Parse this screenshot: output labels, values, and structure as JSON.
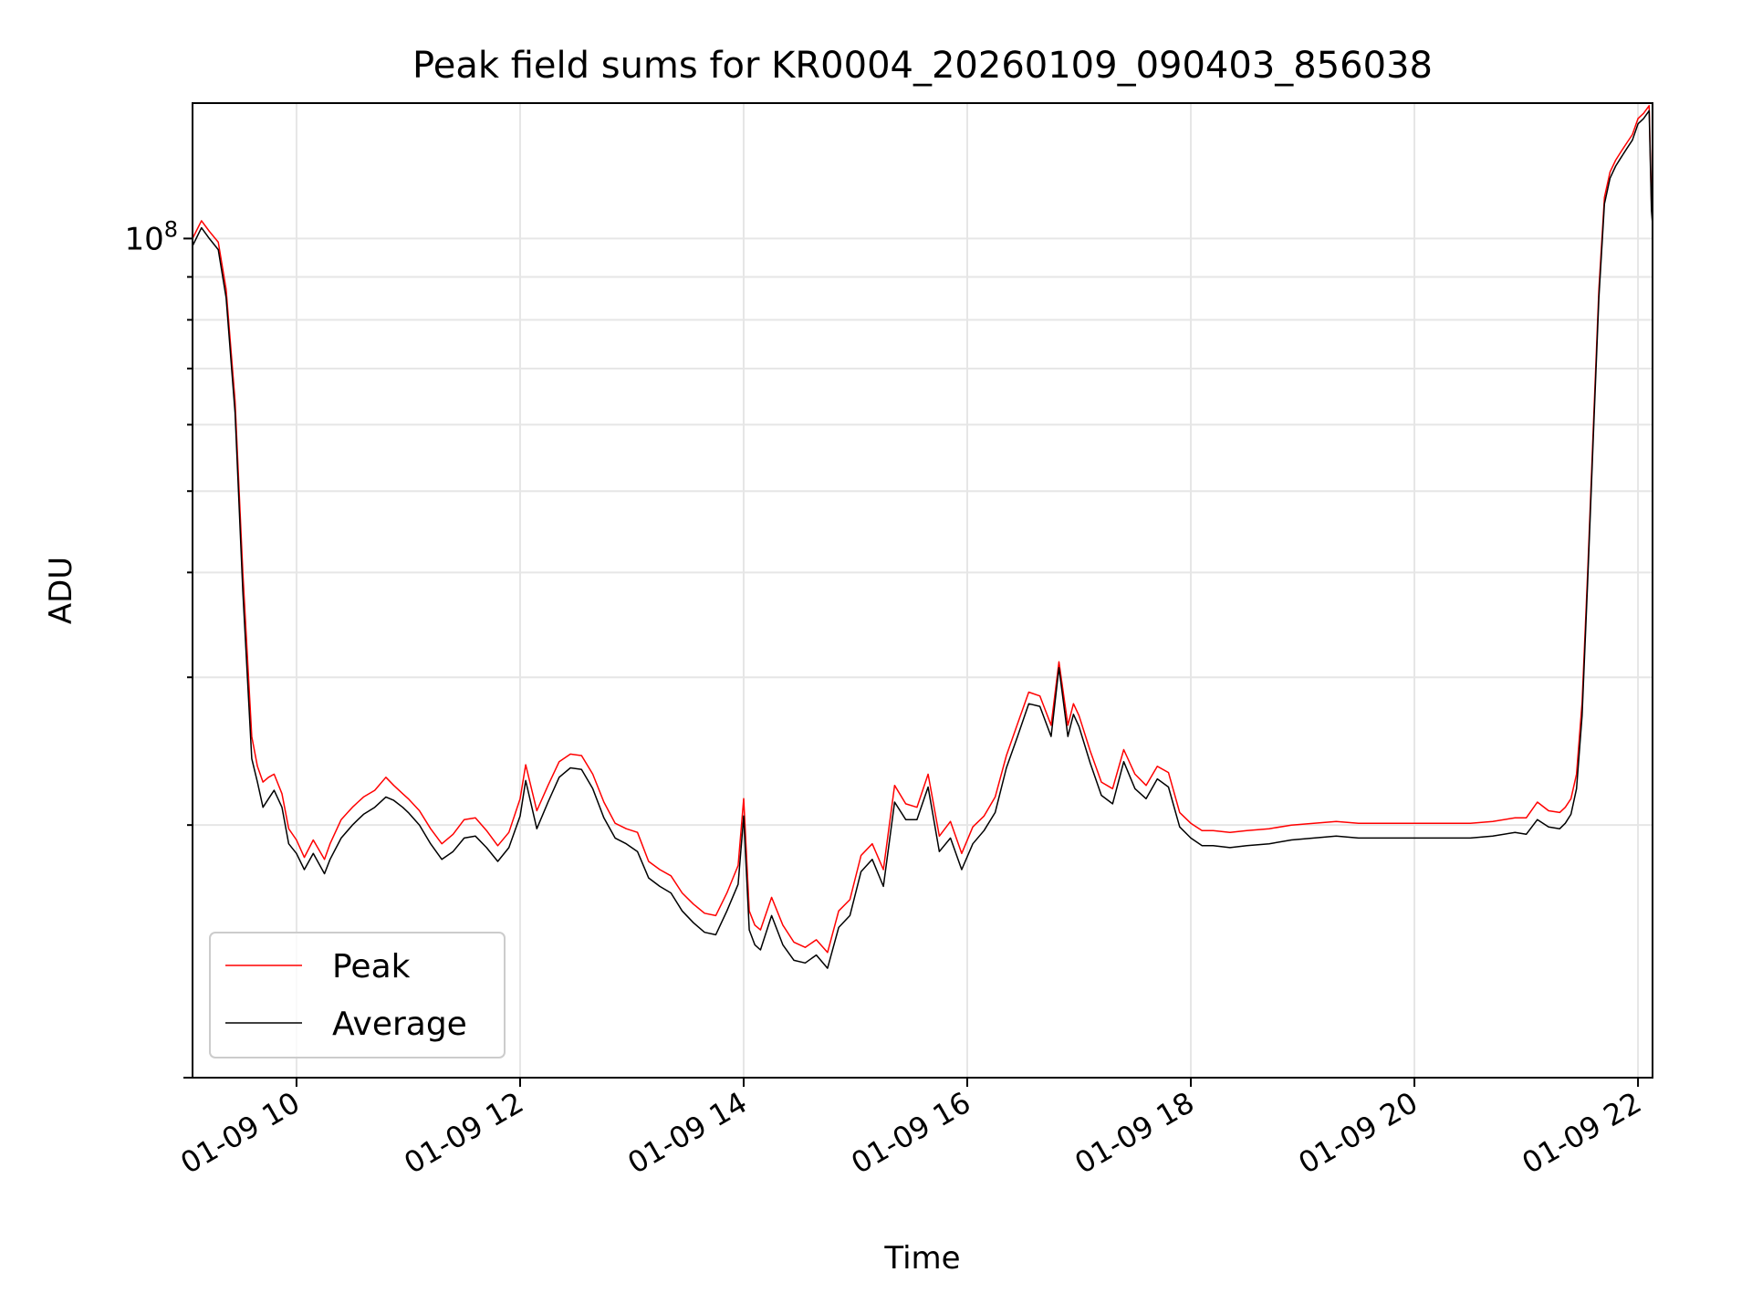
{
  "chart_data": {
    "type": "line",
    "title": "Peak field sums for KR0004_20260109_090403_856038",
    "xlabel": "Time",
    "ylabel": "ADU",
    "yscale": "log",
    "ylim": [
      10000000,
      145000000
    ],
    "xlim_hours": [
      9.07,
      22.13
    ],
    "grid": true,
    "legend_position": "lower-left",
    "x_ticks": [
      {
        "hour": 10,
        "label": "01-09 10"
      },
      {
        "hour": 12,
        "label": "01-09 12"
      },
      {
        "hour": 14,
        "label": "01-09 14"
      },
      {
        "hour": 16,
        "label": "01-09 16"
      },
      {
        "hour": 18,
        "label": "01-09 18"
      },
      {
        "hour": 20,
        "label": "01-09 20"
      },
      {
        "hour": 22,
        "label": "01-09 22"
      }
    ],
    "y_major_label": {
      "value": 100000000,
      "base": "10",
      "exponent": "8"
    },
    "series": [
      {
        "name": "Peak",
        "color": "#ff0000"
      },
      {
        "name": "Average",
        "color": "#000000"
      }
    ],
    "x_hours": [
      9.07,
      9.15,
      9.22,
      9.3,
      9.37,
      9.45,
      9.52,
      9.6,
      9.65,
      9.7,
      9.75,
      9.8,
      9.87,
      9.93,
      10.0,
      10.07,
      10.15,
      10.25,
      10.3,
      10.4,
      10.5,
      10.55,
      10.6,
      10.7,
      10.8,
      10.87,
      10.95,
      11.0,
      11.1,
      11.2,
      11.3,
      11.4,
      11.5,
      11.6,
      11.7,
      11.8,
      11.9,
      12.0,
      12.05,
      12.15,
      12.25,
      12.35,
      12.45,
      12.55,
      12.65,
      12.75,
      12.85,
      12.95,
      13.05,
      13.15,
      13.25,
      13.35,
      13.45,
      13.55,
      13.65,
      13.75,
      13.85,
      13.95,
      14.0,
      14.05,
      14.1,
      14.15,
      14.25,
      14.35,
      14.45,
      14.55,
      14.65,
      14.75,
      14.85,
      14.95,
      15.05,
      15.15,
      15.25,
      15.35,
      15.45,
      15.55,
      15.65,
      15.75,
      15.85,
      15.95,
      16.05,
      16.15,
      16.25,
      16.35,
      16.45,
      16.55,
      16.65,
      16.75,
      16.82,
      16.9,
      16.95,
      17.0,
      17.1,
      17.2,
      17.3,
      17.4,
      17.5,
      17.6,
      17.7,
      17.8,
      17.9,
      18.0,
      18.1,
      18.2,
      18.35,
      18.5,
      18.7,
      18.9,
      19.1,
      19.3,
      19.5,
      19.7,
      19.9,
      20.1,
      20.3,
      20.5,
      20.7,
      20.9,
      21.0,
      21.1,
      21.2,
      21.3,
      21.35,
      21.4,
      21.45,
      21.5,
      21.55,
      21.6,
      21.65,
      21.7,
      21.75,
      21.8,
      21.85,
      21.9,
      21.95,
      22.0,
      22.05,
      22.1,
      22.12,
      22.13
    ],
    "average_values": [
      98000000,
      103000000,
      100000000,
      97000000,
      85000000,
      62000000,
      38000000,
      24000000,
      22500000,
      21000000,
      21500000,
      22000000,
      21000000,
      19000000,
      18500000,
      17700000,
      18500000,
      17500000,
      18200000,
      19300000,
      20000000,
      20300000,
      20600000,
      21000000,
      21600000,
      21400000,
      21000000,
      20700000,
      20000000,
      19000000,
      18200000,
      18600000,
      19300000,
      19400000,
      18800000,
      18100000,
      18800000,
      20500000,
      22600000,
      19800000,
      21300000,
      22800000,
      23400000,
      23300000,
      22100000,
      20400000,
      19300000,
      19000000,
      18600000,
      17300000,
      16900000,
      16600000,
      15800000,
      15300000,
      14900000,
      14800000,
      15800000,
      17000000,
      20500000,
      15000000,
      14400000,
      14200000,
      15600000,
      14400000,
      13800000,
      13700000,
      14000000,
      13500000,
      15100000,
      15600000,
      17600000,
      18200000,
      16900000,
      21300000,
      20300000,
      20300000,
      22200000,
      18600000,
      19300000,
      17700000,
      19000000,
      19700000,
      20700000,
      23400000,
      25500000,
      27900000,
      27700000,
      25500000,
      30800000,
      25500000,
      27100000,
      26200000,
      23700000,
      21700000,
      21200000,
      23800000,
      22100000,
      21500000,
      22700000,
      22200000,
      19900000,
      19300000,
      18900000,
      18900000,
      18800000,
      18900000,
      19000000,
      19200000,
      19300000,
      19400000,
      19300000,
      19300000,
      19300000,
      19300000,
      19300000,
      19300000,
      19400000,
      19600000,
      19500000,
      20300000,
      19900000,
      19800000,
      20100000,
      20600000,
      22100000,
      27000000,
      39000000,
      58000000,
      85000000,
      110000000,
      118000000,
      122000000,
      125000000,
      128000000,
      131000000,
      137000000,
      139000000,
      142000000,
      108000000,
      104000000
    ],
    "peak_values": [
      100000000,
      105000000,
      102000000,
      99000000,
      87000000,
      64000000,
      40000000,
      25500000,
      23500000,
      22500000,
      22800000,
      23000000,
      21800000,
      19800000,
      19200000,
      18300000,
      19200000,
      18200000,
      19000000,
      20300000,
      21000000,
      21300000,
      21600000,
      22000000,
      22800000,
      22300000,
      21800000,
      21500000,
      20800000,
      19800000,
      19000000,
      19500000,
      20300000,
      20400000,
      19700000,
      18900000,
      19600000,
      21500000,
      23600000,
      20800000,
      22300000,
      23800000,
      24300000,
      24200000,
      23000000,
      21300000,
      20100000,
      19800000,
      19600000,
      18100000,
      17700000,
      17400000,
      16600000,
      16100000,
      15700000,
      15600000,
      16600000,
      17900000,
      21500000,
      15800000,
      15200000,
      15000000,
      16400000,
      15200000,
      14500000,
      14300000,
      14600000,
      14100000,
      15800000,
      16300000,
      18400000,
      19000000,
      17700000,
      22300000,
      21200000,
      21000000,
      23000000,
      19400000,
      20200000,
      18500000,
      19900000,
      20500000,
      21600000,
      24200000,
      26400000,
      28800000,
      28500000,
      26300000,
      31300000,
      26300000,
      27900000,
      27000000,
      24500000,
      22500000,
      22100000,
      24600000,
      23000000,
      22300000,
      23500000,
      23100000,
      20700000,
      20100000,
      19700000,
      19700000,
      19600000,
      19700000,
      19800000,
      20000000,
      20100000,
      20200000,
      20100000,
      20100000,
      20100000,
      20100000,
      20100000,
      20100000,
      20200000,
      20400000,
      20400000,
      21300000,
      20800000,
      20700000,
      21000000,
      21500000,
      23000000,
      28000000,
      40000000,
      59500000,
      87000000,
      112000000,
      120000000,
      124000000,
      127000000,
      130000000,
      133000000,
      139000000,
      141000000,
      144000000,
      110000000,
      106000000
    ]
  }
}
